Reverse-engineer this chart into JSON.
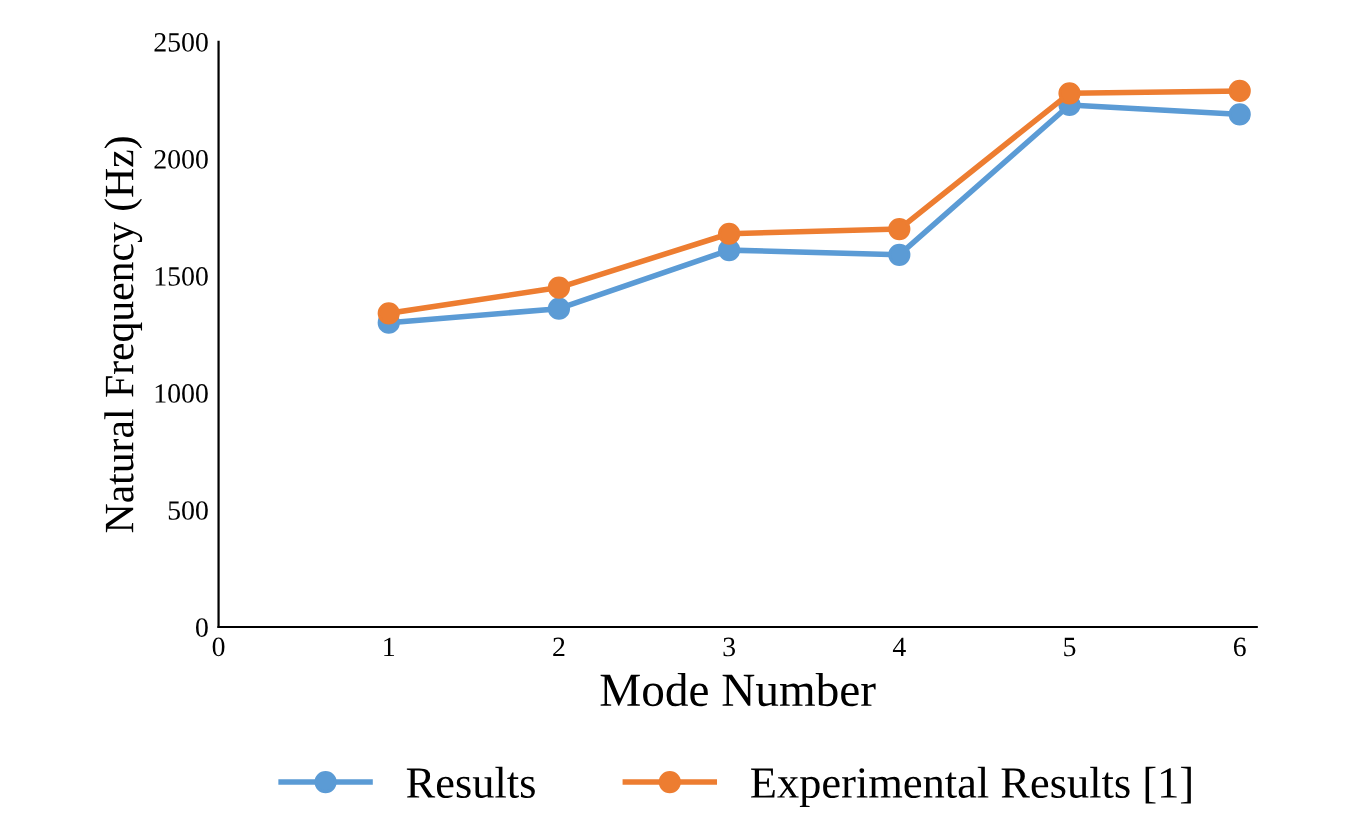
{
  "chart_data": {
    "type": "line",
    "xlabel": "Mode Number",
    "ylabel": "Natural Frequency (Hz)",
    "x": [
      1,
      2,
      3,
      4,
      5,
      6
    ],
    "series": [
      {
        "name": "Results",
        "color": "#5b9bd5",
        "values": [
          1300,
          1360,
          1610,
          1590,
          2230,
          2190
        ]
      },
      {
        "name": "Experimental Results [1]",
        "color": "#ed7d31",
        "values": [
          1340,
          1450,
          1680,
          1700,
          2280,
          2290
        ]
      }
    ],
    "xlim": [
      0,
      6.1
    ],
    "xticks": [
      0,
      1,
      2,
      3,
      4,
      5,
      6
    ],
    "ylim": [
      0,
      2500
    ],
    "yticks": [
      0,
      500,
      1000,
      1500,
      2000,
      2500
    ],
    "grid": false,
    "legend": "bottom",
    "marker": "circle",
    "line_style": "solid"
  }
}
